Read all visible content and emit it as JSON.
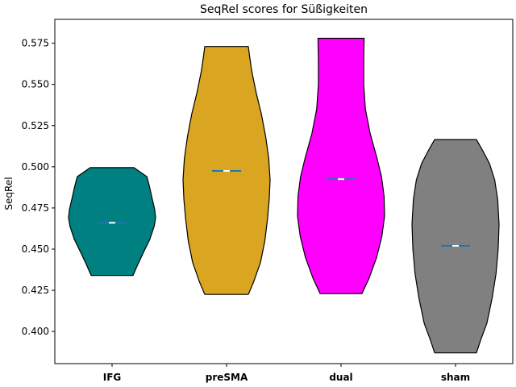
{
  "chart_data": {
    "type": "violin",
    "title": "SeqRel scores for Süßigkeiten",
    "xlabel": "",
    "ylabel": "SeqRel",
    "ylim": [
      0.3805,
      0.5895
    ],
    "yticks": [
      "0.400",
      "0.425",
      "0.450",
      "0.475",
      "0.500",
      "0.525",
      "0.550",
      "0.575"
    ],
    "categories": [
      "IFG",
      "preSMA",
      "dual",
      "sham"
    ],
    "grid": false,
    "series": [
      {
        "category": "IFG",
        "color": "#008080",
        "min": 0.434,
        "max": 0.4995,
        "median": 0.466,
        "mean": 0.466,
        "density": [
          [
            0.434,
            0.48
          ],
          [
            0.44,
            0.58
          ],
          [
            0.448,
            0.72
          ],
          [
            0.456,
            0.87
          ],
          [
            0.464,
            0.97
          ],
          [
            0.469,
            1.0
          ],
          [
            0.474,
            0.98
          ],
          [
            0.481,
            0.92
          ],
          [
            0.488,
            0.86
          ],
          [
            0.494,
            0.8
          ],
          [
            0.4995,
            0.5
          ]
        ]
      },
      {
        "category": "preSMA",
        "color": "#DAA520",
        "min": 0.4225,
        "max": 0.573,
        "median": 0.4975,
        "mean": 0.4975,
        "density": [
          [
            0.4225,
            0.5
          ],
          [
            0.43,
            0.62
          ],
          [
            0.442,
            0.78
          ],
          [
            0.455,
            0.88
          ],
          [
            0.468,
            0.94
          ],
          [
            0.48,
            0.98
          ],
          [
            0.492,
            1.0
          ],
          [
            0.505,
            0.97
          ],
          [
            0.518,
            0.9
          ],
          [
            0.532,
            0.8
          ],
          [
            0.545,
            0.68
          ],
          [
            0.558,
            0.58
          ],
          [
            0.567,
            0.53
          ],
          [
            0.573,
            0.5
          ]
        ]
      },
      {
        "category": "dual",
        "color": "#FF00FF",
        "min": 0.423,
        "max": 0.578,
        "median": 0.4925,
        "mean": 0.4925,
        "density": [
          [
            0.423,
            0.48
          ],
          [
            0.432,
            0.64
          ],
          [
            0.445,
            0.82
          ],
          [
            0.458,
            0.94
          ],
          [
            0.47,
            1.0
          ],
          [
            0.482,
            0.99
          ],
          [
            0.494,
            0.93
          ],
          [
            0.506,
            0.82
          ],
          [
            0.52,
            0.67
          ],
          [
            0.535,
            0.56
          ],
          [
            0.55,
            0.52
          ],
          [
            0.565,
            0.52
          ],
          [
            0.578,
            0.53
          ]
        ]
      },
      {
        "category": "sham",
        "color": "#808080",
        "min": 0.387,
        "max": 0.5165,
        "median": 0.452,
        "mean": 0.452,
        "density": [
          [
            0.387,
            0.48
          ],
          [
            0.395,
            0.58
          ],
          [
            0.405,
            0.72
          ],
          [
            0.42,
            0.84
          ],
          [
            0.435,
            0.93
          ],
          [
            0.45,
            0.98
          ],
          [
            0.465,
            1.0
          ],
          [
            0.48,
            0.97
          ],
          [
            0.492,
            0.9
          ],
          [
            0.502,
            0.78
          ],
          [
            0.51,
            0.62
          ],
          [
            0.5165,
            0.48
          ]
        ]
      }
    ]
  }
}
